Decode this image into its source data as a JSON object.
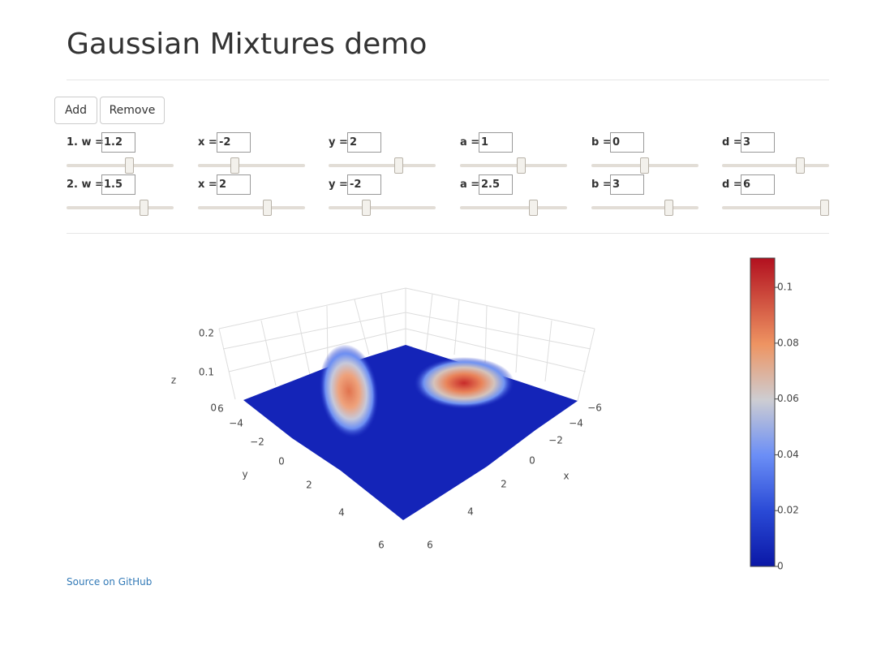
{
  "header": {
    "title": "Gaussian Mixtures demo"
  },
  "buttons": [
    "Add",
    "Remove"
  ],
  "components": [
    {
      "fields": [
        {
          "label": "1. w =",
          "value": "1.2"
        },
        {
          "label": "x =",
          "value": "-2"
        },
        {
          "label": "y =",
          "value": "2"
        },
        {
          "label": "a =",
          "value": "1"
        },
        {
          "label": "b =",
          "value": "0"
        },
        {
          "label": "d =",
          "value": "3"
        }
      ]
    },
    {
      "fields": [
        {
          "label": "2. w =",
          "value": "1.5"
        },
        {
          "label": "x =",
          "value": "2"
        },
        {
          "label": "y =",
          "value": "-2"
        },
        {
          "label": "a =",
          "value": "2.5"
        },
        {
          "label": "b =",
          "value": "3"
        },
        {
          "label": "d =",
          "value": "6"
        }
      ]
    }
  ],
  "plot": {
    "x_axis": {
      "title": "x",
      "ticks": [
        "−6",
        "−4",
        "−2",
        "0",
        "2",
        "4",
        "6"
      ]
    },
    "y_axis": {
      "title": "y",
      "ticks": [
        "−4",
        "−2",
        "0",
        "2",
        "4",
        "6"
      ]
    },
    "z_axis": {
      "title": "z",
      "ticks": [
        "0",
        "0.1",
        "0.2"
      ]
    },
    "y_top_tick": "6",
    "colorbar": {
      "lim": [
        0,
        0.1105
      ],
      "ticks": [
        0,
        0.02,
        0.04,
        0.06,
        0.08,
        0.1
      ]
    }
  },
  "footer": {
    "link": "Source on GitHub"
  }
}
